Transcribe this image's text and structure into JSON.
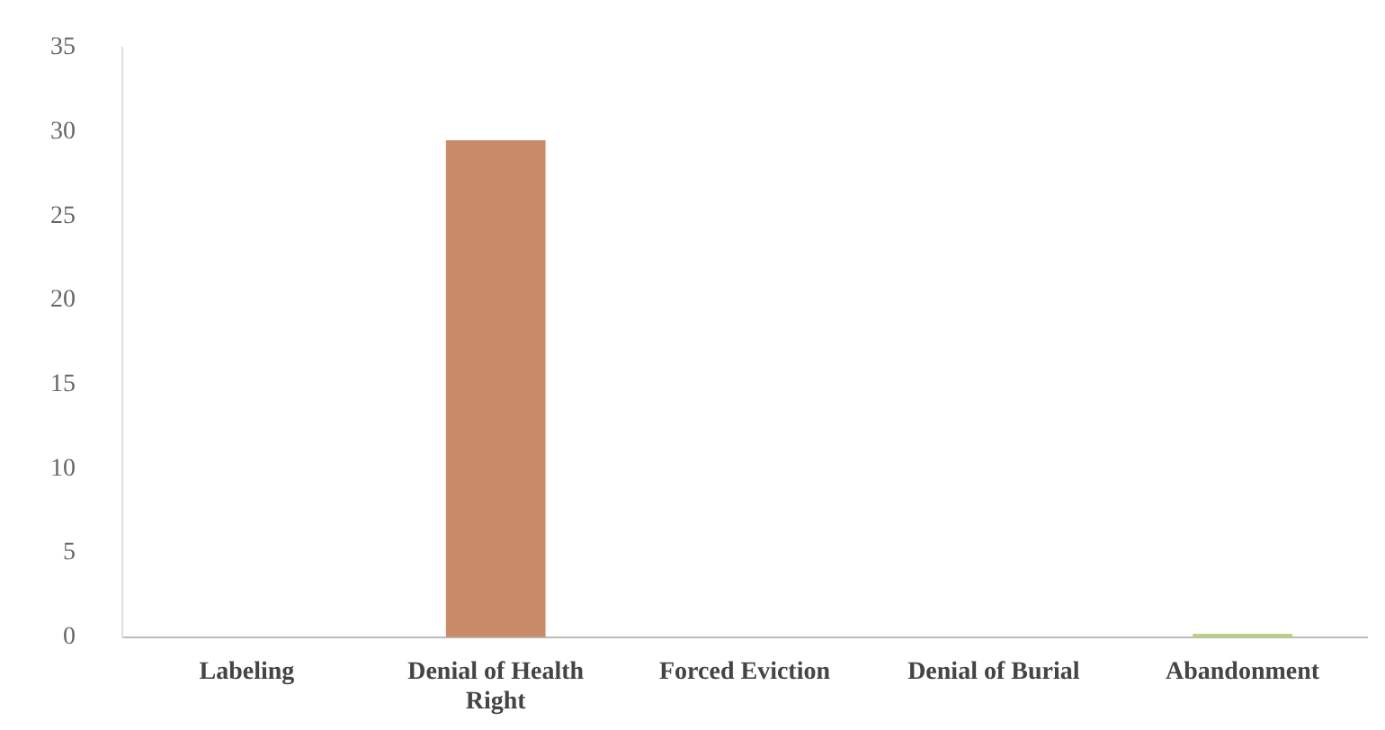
{
  "chart_data": {
    "type": "bar",
    "categories": [
      "Labeling",
      "Denial of Health Right",
      "Forced Eviction",
      "Denial of Burial",
      "Abandonment"
    ],
    "values": [
      0,
      29.5,
      0,
      0,
      0.2
    ],
    "colors": [
      "#c98a6a",
      "#c98a6a",
      "#c98a6a",
      "#c98a6a",
      "#b8d47a"
    ],
    "ylim": [
      0,
      35
    ],
    "yticks": [
      0,
      5,
      10,
      15,
      20,
      25,
      30,
      35
    ],
    "grid": false
  }
}
